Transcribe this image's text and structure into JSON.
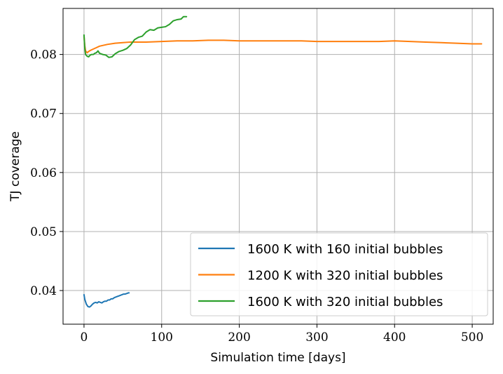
{
  "chart_data": {
    "type": "line",
    "xlabel": "Simulation time [days]",
    "ylabel": "TJ coverage",
    "xlim": [
      -27,
      527
    ],
    "ylim": [
      0.0343,
      0.0878
    ],
    "xticks": [
      0,
      100,
      200,
      300,
      400,
      500
    ],
    "xtick_labels": [
      "0",
      "100",
      "200",
      "300",
      "400",
      "500"
    ],
    "yticks": [
      0.04,
      0.05,
      0.06,
      0.07,
      0.08
    ],
    "ytick_labels": [
      "0.04",
      "0.05",
      "0.06",
      "0.07",
      "0.08"
    ],
    "grid": true,
    "legend_position": "lower-right",
    "series": [
      {
        "name": "1600 K with 160 initial bubbles",
        "color": "#1f77b4",
        "points": [
          [
            0,
            0.0393
          ],
          [
            1,
            0.0385
          ],
          [
            3,
            0.0377
          ],
          [
            5,
            0.0373
          ],
          [
            7,
            0.0372
          ],
          [
            9,
            0.0374
          ],
          [
            11,
            0.0377
          ],
          [
            13,
            0.0379
          ],
          [
            15,
            0.038
          ],
          [
            17,
            0.0379
          ],
          [
            19,
            0.0381
          ],
          [
            21,
            0.038
          ],
          [
            23,
            0.0379
          ],
          [
            25,
            0.0381
          ],
          [
            27,
            0.0382
          ],
          [
            29,
            0.0382
          ],
          [
            31,
            0.0384
          ],
          [
            33,
            0.0384
          ],
          [
            35,
            0.0386
          ],
          [
            37,
            0.0386
          ],
          [
            39,
            0.0388
          ],
          [
            41,
            0.0389
          ],
          [
            43,
            0.039
          ],
          [
            45,
            0.0391
          ],
          [
            47,
            0.0392
          ],
          [
            49,
            0.0393
          ],
          [
            51,
            0.0394
          ],
          [
            53,
            0.0394
          ],
          [
            55,
            0.0395
          ],
          [
            57,
            0.0396
          ],
          [
            58,
            0.0396
          ]
        ]
      },
      {
        "name": "1200 K with 320 initial bubbles",
        "color": "#ff7f0e",
        "points": [
          [
            0,
            0.0831
          ],
          [
            1,
            0.0815
          ],
          [
            2,
            0.0806
          ],
          [
            4,
            0.0803
          ],
          [
            7,
            0.0806
          ],
          [
            10,
            0.0808
          ],
          [
            15,
            0.0811
          ],
          [
            20,
            0.0814
          ],
          [
            30,
            0.0817
          ],
          [
            40,
            0.0819
          ],
          [
            50,
            0.082
          ],
          [
            60,
            0.0821
          ],
          [
            80,
            0.0821
          ],
          [
            100,
            0.0822
          ],
          [
            120,
            0.0823
          ],
          [
            140,
            0.0823
          ],
          [
            160,
            0.0824
          ],
          [
            180,
            0.0824
          ],
          [
            200,
            0.0823
          ],
          [
            220,
            0.0823
          ],
          [
            240,
            0.0823
          ],
          [
            260,
            0.0823
          ],
          [
            280,
            0.0823
          ],
          [
            300,
            0.0822
          ],
          [
            320,
            0.0822
          ],
          [
            340,
            0.0822
          ],
          [
            360,
            0.0822
          ],
          [
            380,
            0.0822
          ],
          [
            400,
            0.0823
          ],
          [
            420,
            0.0822
          ],
          [
            440,
            0.0821
          ],
          [
            460,
            0.082
          ],
          [
            480,
            0.0819
          ],
          [
            500,
            0.0818
          ],
          [
            512,
            0.0818
          ]
        ]
      },
      {
        "name": "1600 K with 320 initial bubbles",
        "color": "#2ca02c",
        "points": [
          [
            0,
            0.0833
          ],
          [
            1,
            0.081
          ],
          [
            2,
            0.08
          ],
          [
            4,
            0.0797
          ],
          [
            6,
            0.0796
          ],
          [
            8,
            0.0799
          ],
          [
            10,
            0.08
          ],
          [
            12,
            0.08
          ],
          [
            14,
            0.0802
          ],
          [
            16,
            0.0803
          ],
          [
            18,
            0.0806
          ],
          [
            20,
            0.0802
          ],
          [
            24,
            0.08
          ],
          [
            28,
            0.0799
          ],
          [
            32,
            0.0795
          ],
          [
            36,
            0.0796
          ],
          [
            40,
            0.0801
          ],
          [
            45,
            0.0805
          ],
          [
            50,
            0.0807
          ],
          [
            55,
            0.081
          ],
          [
            60,
            0.0816
          ],
          [
            65,
            0.0825
          ],
          [
            70,
            0.0829
          ],
          [
            75,
            0.0831
          ],
          [
            80,
            0.0838
          ],
          [
            85,
            0.0842
          ],
          [
            90,
            0.0841
          ],
          [
            95,
            0.0845
          ],
          [
            100,
            0.0846
          ],
          [
            105,
            0.0847
          ],
          [
            110,
            0.0851
          ],
          [
            115,
            0.0857
          ],
          [
            120,
            0.0859
          ],
          [
            125,
            0.086
          ],
          [
            128,
            0.0864
          ],
          [
            132,
            0.0864
          ]
        ]
      }
    ]
  }
}
